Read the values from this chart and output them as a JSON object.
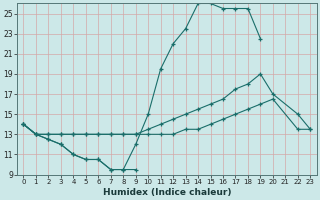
{
  "xlabel": "Humidex (Indice chaleur)",
  "bg_color": "#cce8e8",
  "grid_color_major": "#e8c8c8",
  "grid_color_minor": "#e8c8c8",
  "line_color": "#1a6e6a",
  "xlim": [
    -0.5,
    23.5
  ],
  "ylim": [
    9,
    26
  ],
  "yticks": [
    9,
    11,
    13,
    15,
    17,
    19,
    21,
    23,
    25
  ],
  "xticks": [
    0,
    1,
    2,
    3,
    4,
    5,
    6,
    7,
    8,
    9,
    10,
    11,
    12,
    13,
    14,
    15,
    16,
    17,
    18,
    19,
    20,
    21,
    22,
    23
  ],
  "series": [
    {
      "x": [
        0,
        1,
        2,
        3,
        4,
        5,
        6,
        7,
        8,
        9
      ],
      "y": [
        14.0,
        13.0,
        12.5,
        12.0,
        11.0,
        10.5,
        10.5,
        9.5,
        9.5,
        9.5
      ]
    },
    {
      "x": [
        0,
        1,
        2,
        3,
        4,
        5,
        6,
        7,
        8,
        9,
        10,
        11,
        12,
        13,
        14,
        15,
        16,
        17,
        18,
        19
      ],
      "y": [
        14.0,
        13.0,
        12.5,
        12.0,
        11.0,
        10.5,
        10.5,
        9.5,
        9.5,
        12.0,
        15.0,
        19.5,
        22.0,
        23.5,
        26.0,
        26.0,
        25.5,
        25.5,
        25.5,
        22.5
      ]
    },
    {
      "x": [
        0,
        1,
        2,
        3,
        4,
        5,
        6,
        7,
        8,
        9,
        10,
        11,
        12,
        13,
        14,
        15,
        16,
        17,
        18,
        19,
        20,
        22,
        23
      ],
      "y": [
        14.0,
        13.0,
        13.0,
        13.0,
        13.0,
        13.0,
        13.0,
        13.0,
        13.0,
        13.0,
        13.5,
        14.0,
        14.5,
        15.0,
        15.5,
        16.0,
        16.5,
        17.5,
        18.0,
        19.0,
        17.0,
        15.0,
        13.5
      ]
    },
    {
      "x": [
        0,
        1,
        2,
        3,
        4,
        5,
        6,
        7,
        8,
        9,
        10,
        11,
        12,
        13,
        14,
        15,
        16,
        17,
        18,
        19,
        20,
        22,
        23
      ],
      "y": [
        14.0,
        13.0,
        13.0,
        13.0,
        13.0,
        13.0,
        13.0,
        13.0,
        13.0,
        13.0,
        13.0,
        13.0,
        13.0,
        13.5,
        13.5,
        14.0,
        14.5,
        15.0,
        15.5,
        16.0,
        16.5,
        13.5,
        13.5
      ]
    }
  ]
}
